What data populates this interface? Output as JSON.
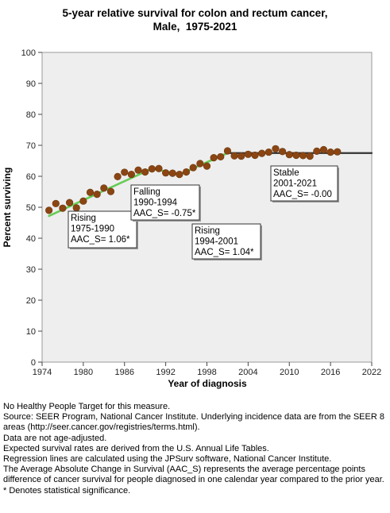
{
  "title_lines": [
    "5-year relative survival for colon and rectum cancer,",
    "Male,  1975-2021"
  ],
  "chart_data": {
    "type": "scatter",
    "title": "5-year relative survival for colon and rectum cancer, Male,  1975-2021",
    "xlabel": "Year of diagnosis",
    "ylabel": "Percent surviving",
    "xlim": [
      1974,
      2022
    ],
    "ylim": [
      0,
      100
    ],
    "x_ticks": [
      "1974",
      "1980",
      "1986",
      "1992",
      "1998",
      "2004",
      "2010",
      "2016",
      "2022"
    ],
    "y_ticks": [
      "0",
      "10",
      "20",
      "30",
      "40",
      "50",
      "60",
      "70",
      "80",
      "90",
      "100"
    ],
    "grid": false,
    "colors": {
      "points": "#8B4513",
      "trend_rising": "#66CC55",
      "trend_stable": "#333333",
      "plot_background": "#EEEEEE"
    },
    "observed": {
      "x": [
        1975,
        1976,
        1977,
        1978,
        1979,
        1980,
        1981,
        1982,
        1983,
        1984,
        1985,
        1986,
        1987,
        1988,
        1989,
        1990,
        1991,
        1992,
        1993,
        1994,
        1995,
        1996,
        1997,
        1998,
        1999,
        2000,
        2001,
        2002,
        2003,
        2004,
        2005,
        2006,
        2007,
        2008,
        2009,
        2010,
        2011,
        2012,
        2013,
        2014,
        2015,
        2016,
        2017
      ],
      "y": [
        49.0,
        51.2,
        49.7,
        51.5,
        49.8,
        52.0,
        54.8,
        54.2,
        56.2,
        55.1,
        59.9,
        61.3,
        60.6,
        62.0,
        61.4,
        62.4,
        62.5,
        61.1,
        61.0,
        60.6,
        61.4,
        62.8,
        64.1,
        63.3,
        66.0,
        66.3,
        68.2,
        66.6,
        66.5,
        67.1,
        66.8,
        67.4,
        67.8,
        68.9,
        68.0,
        67.0,
        66.8,
        66.7,
        66.5,
        68.1,
        68.6,
        67.8,
        67.9
      ]
    },
    "trend_segments": [
      {
        "name": "Rising",
        "x": [
          1975,
          1990
        ],
        "y": [
          47.2,
          62.5
        ]
      },
      {
        "name": "Falling",
        "x": [
          1990,
          1994
        ],
        "y": [
          62.5,
          60.6
        ]
      },
      {
        "name": "Rising",
        "x": [
          1994,
          2001
        ],
        "y": [
          60.6,
          67.5
        ]
      },
      {
        "name": "Stable",
        "x": [
          2001,
          2022
        ],
        "y": [
          67.5,
          67.5
        ]
      }
    ],
    "annotations": [
      {
        "lines": [
          "Rising",
          "1975-1990",
          "AAC_S=  1.06*"
        ]
      },
      {
        "lines": [
          "Falling",
          "1990-1994",
          "AAC_S= -0.75*"
        ]
      },
      {
        "lines": [
          "Rising",
          "1994-2001",
          "AAC_S=  1.04*"
        ]
      },
      {
        "lines": [
          "Stable",
          "2001-2021",
          "AAC_S= -0.00"
        ]
      }
    ]
  },
  "notes": [
    "No Healthy People Target for this measure.",
    "Source: SEER Program, National Cancer Institute. Underlying incidence data are from the SEER 8 areas (http://seer.cancer.gov/registries/terms.html).",
    "Data are not age-adjusted.",
    "Expected survival rates are derived from the U.S. Annual Life Tables.",
    "Regression lines are calculated using the JPSurv software, National Cancer Institute.",
    "The Average Absolute Change in Survival (AAC_S) represents the average percentage points difference of cancer survival for people diagnosed in one calendar year compared to the prior year.",
    "* Denotes statistical significance."
  ]
}
